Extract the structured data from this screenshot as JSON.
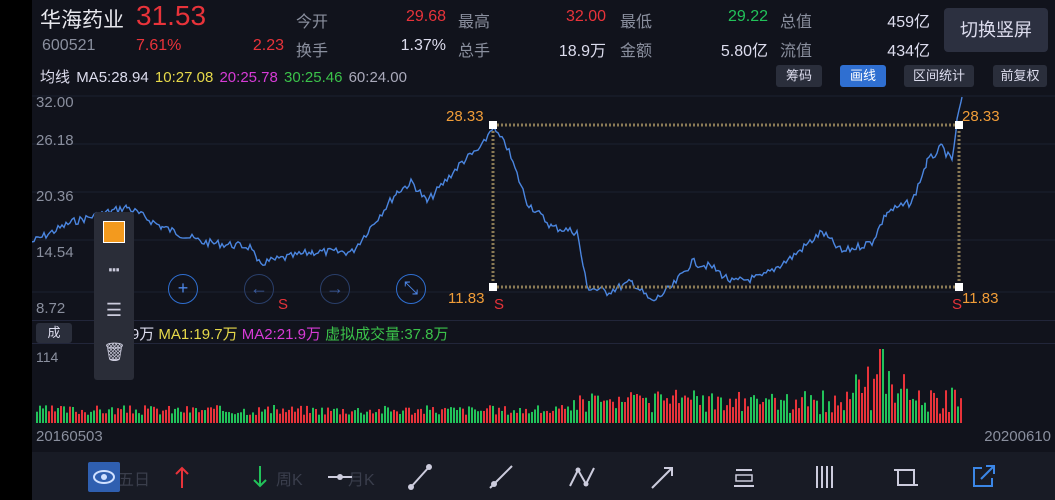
{
  "stock": {
    "name": "华海药业",
    "price": "31.53",
    "code": "600521",
    "change_pct": "7.61%",
    "change": "2.23"
  },
  "quote": [
    {
      "label": "今开",
      "value": "29.68",
      "color": "#e8333a"
    },
    {
      "label": "最高",
      "value": "32.00",
      "color": "#e8333a"
    },
    {
      "label": "最低",
      "value": "29.22",
      "color": "#22c25a"
    },
    {
      "label": "总值",
      "value": "459亿",
      "color": "#dde"
    },
    {
      "label": "换手",
      "value": "1.37%",
      "color": "#dde"
    },
    {
      "label": "总手",
      "value": "18.9万",
      "color": "#dde"
    },
    {
      "label": "金额",
      "value": "5.80亿",
      "color": "#dde"
    },
    {
      "label": "流值",
      "value": "434亿",
      "color": "#dde"
    }
  ],
  "switch_label": "切换竖屏",
  "ma_bar": [
    {
      "text": "均线",
      "color": "#dde"
    },
    {
      "text": "MA5:28.94",
      "color": "#dde"
    },
    {
      "text": "10:27.08",
      "color": "#e6d94a"
    },
    {
      "text": "20:25.78",
      "color": "#d63bd6"
    },
    {
      "text": "30:25.46",
      "color": "#3bc24a"
    },
    {
      "text": "60:24.00",
      "color": "#aab"
    }
  ],
  "top_buttons": [
    {
      "label": "筹码",
      "active": false
    },
    {
      "label": "画线",
      "active": true
    },
    {
      "label": "区间统计",
      "active": false
    },
    {
      "label": "前复权",
      "active": false
    }
  ],
  "y_axis": [
    "32.00",
    "26.18",
    "20.36",
    "14.54",
    "8.72"
  ],
  "overlay": {
    "high": "28.33",
    "low": "11.83",
    "s": "S"
  },
  "volume_bar": {
    "tab": "成",
    "vol": "18.9万",
    "ma1": "MA1:19.7万",
    "ma2": "MA2:21.9万",
    "virtual": "虚拟成交量:37.8万",
    "axis": "114"
  },
  "dates": {
    "start": "20160503",
    "end": "20200610"
  },
  "colors": {
    "line": "#4b86e0",
    "box": "#8a7a55",
    "orange": "#f19d38",
    "red": "#e8333a",
    "green": "#22c25a"
  },
  "toolbar_icons": [
    "eye-icon",
    "arrow-up-icon",
    "arrow-down-icon",
    "horizontal-line-icon",
    "segment-icon",
    "ray-icon",
    "multi-segment-icon",
    "arrow-line-icon",
    "price-label-icon",
    "vertical-lines-icon",
    "crop-box-icon",
    "share-icon"
  ],
  "ghost_labels": [
    "五日",
    "周K",
    "月K"
  ]
}
